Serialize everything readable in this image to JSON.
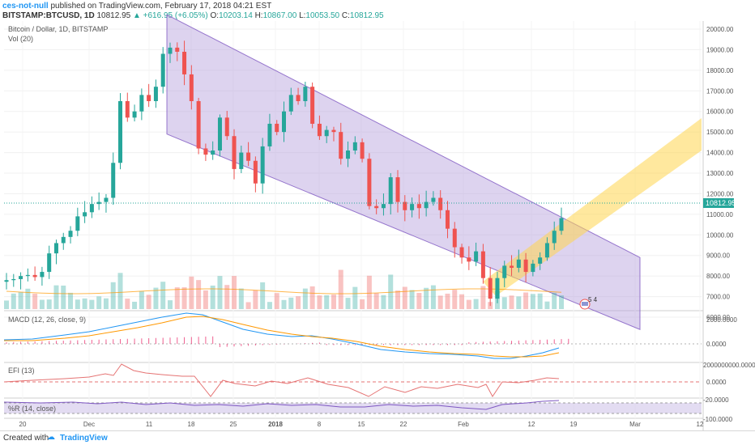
{
  "header": {
    "author": "ces-not-null",
    "published": "published on TradingView.com, February 17, 2018 04:21 EST",
    "symbol": "BITSTAMP:BTCUSD, 1D",
    "last": "10812.95",
    "change": "▲ +616.95 (+6.05%)",
    "o_label": "O:",
    "o_value": "10203.14",
    "h_label": "H:",
    "h_value": "10867.00",
    "l_label": "L:",
    "l_value": "10053.50",
    "c_label": "C:",
    "c_value": "10812.95"
  },
  "legend": {
    "title": "Bitcoin / Dollar, 1D, BITSTAMP",
    "volume": "Vol (20)",
    "macd": "MACD (12, 26, close, 9)",
    "efi": "EFI (13)",
    "wr": "%R (14, close)"
  },
  "price_badge": "10812.95",
  "marker_badge": "5 4",
  "footer": {
    "created_with": "Created with",
    "brand": "TradingView"
  },
  "colors": {
    "up": "#26a69a",
    "down": "#ef5350",
    "channel": "#b39ddb",
    "projection": "#ffd54f",
    "macd": "#2196f3",
    "signal": "#ff9800",
    "efi": "#e57373",
    "wr": "#7e57c2"
  },
  "chart_data": [
    {
      "type": "candlestick",
      "title": "Bitcoin / Dollar, 1D, BITSTAMP",
      "y_ticks": [
        "20000.00",
        "19000.00",
        "18000.00",
        "17000.00",
        "16000.00",
        "15000.00",
        "14000.00",
        "13000.00",
        "12000.00",
        "11000.00",
        "10000.00",
        "9000.00",
        "8000.00",
        "7000.00",
        "6000.00"
      ],
      "x_ticks": [
        "20",
        "Dec",
        "11",
        "18",
        "25",
        "2018",
        "8",
        "15",
        "22",
        "Feb",
        "12",
        "19",
        "Mar",
        "12"
      ],
      "ylim": [
        5400,
        20600
      ],
      "approx_closes": [
        7800,
        7850,
        8000,
        8050,
        7950,
        8200,
        9100,
        9600,
        9900,
        10200,
        10900,
        11100,
        11500,
        11600,
        11800,
        13500,
        16500,
        15700,
        16000,
        16800,
        16500,
        17200,
        18800,
        19100,
        18900,
        17800,
        16500,
        14200,
        13900,
        14100,
        15700,
        14800,
        13200,
        14000,
        13600,
        12500,
        14300,
        15400,
        15000,
        16000,
        16800,
        16500,
        17200,
        15400,
        14800,
        15100,
        15000,
        13700,
        14100,
        14500,
        13700,
        11400,
        11300,
        11500,
        12800,
        11600,
        11200,
        11500,
        11300,
        11600,
        11800,
        11200,
        10300,
        9400,
        8900,
        8700,
        9200,
        7900,
        6900,
        7900,
        8500,
        8400,
        8800,
        8200,
        8600,
        8900,
        9600,
        10200,
        10813
      ],
      "channel": {
        "upper_start": [
          20700,
          0
        ],
        "upper_end": [
          8900,
          1
        ],
        "lower_start": [
          14900,
          0
        ],
        "lower_end": [
          5400,
          1
        ]
      },
      "last_price": 10812.95
    },
    {
      "type": "bar",
      "title": "Vol (20)"
    },
    {
      "type": "line",
      "title": "MACD (12, 26, close, 9)",
      "y_ticks": [
        "2000.0000",
        "0.0000"
      ]
    },
    {
      "type": "line",
      "title": "EFI (13)",
      "y_ticks": [
        "2000000000.0000",
        "0.0000"
      ]
    },
    {
      "type": "line",
      "title": "%R (14, close)",
      "y_ticks": [
        "-20.0000",
        "-100.0000"
      ]
    }
  ]
}
